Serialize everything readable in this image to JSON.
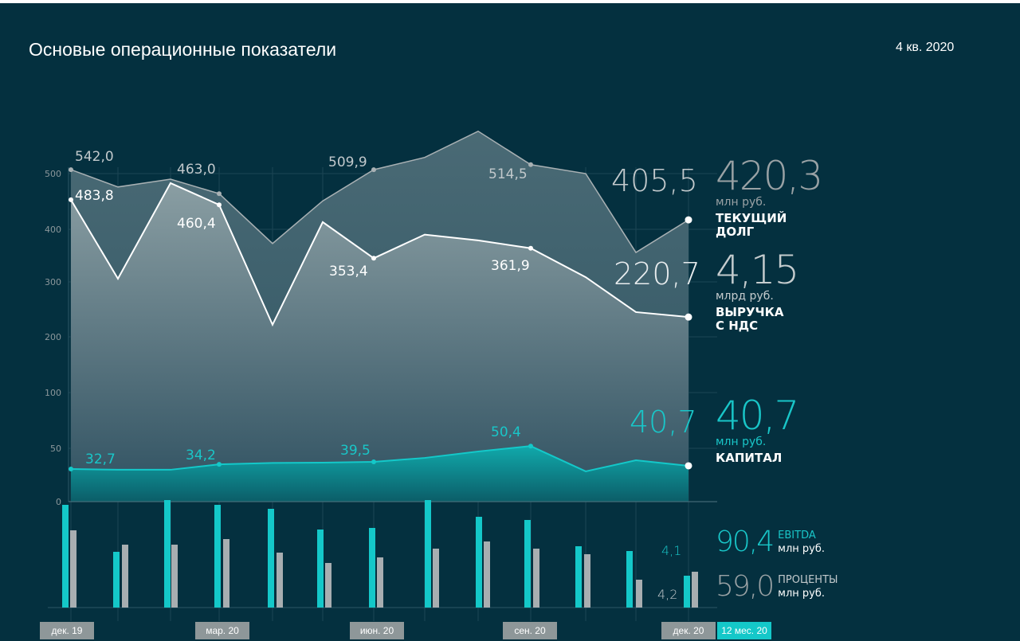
{
  "header": {
    "title": "Основые операционные показатели",
    "period": "4 кв. 2020"
  },
  "colors": {
    "background": "#04303f",
    "debt": "#a9b1b4",
    "revenue": "#ffffff",
    "capital": "#14c8c9",
    "ebitda": "#14c8c9",
    "interest": "#a8aeb1"
  },
  "chart_data": {
    "type": "area",
    "yaxis": {
      "ticks": [
        0,
        50,
        100,
        200,
        300,
        400,
        500
      ],
      "tick_labels": [
        "0",
        "50",
        "100",
        "200",
        "300",
        "400",
        "500"
      ],
      "scale": "piecewise"
    },
    "x": [
      "дек. 19",
      "",
      "",
      "мар. 20",
      "",
      "",
      "июн. 20",
      "",
      "",
      "сен. 20",
      "",
      "",
      "дек. 20"
    ],
    "grid": true,
    "series": [
      {
        "key": "debt",
        "values": [
          507,
          476,
          490,
          464,
          373,
          451,
          507,
          529,
          576,
          516,
          500,
          356,
          417
        ]
      },
      {
        "key": "revenue",
        "values": [
          453,
          306,
          483,
          444,
          222,
          413,
          345,
          390,
          379,
          364,
          309,
          245,
          236
        ]
      },
      {
        "key": "capital",
        "values": [
          30.6,
          29.9,
          29.9,
          35,
          36.3,
          36.6,
          37.3,
          41,
          47,
          52,
          28.4,
          38.8,
          33.6
        ]
      }
    ],
    "point_labels": {
      "debt": [
        "542,0",
        "463,0",
        "509,9",
        "514,5",
        "405,5"
      ],
      "revenue": [
        "483,8",
        "460,4",
        "353,4",
        "361,9",
        "220,7"
      ],
      "capital": [
        "32,7",
        "34,2",
        "39,5",
        "50,4",
        "40,7"
      ]
    },
    "bars": {
      "type": "bar",
      "ebitda": [
        129,
        70,
        135,
        129,
        124,
        98,
        100,
        135,
        114,
        110,
        77,
        71,
        40
      ],
      "interest": [
        97,
        79,
        79,
        86,
        69,
        56,
        63,
        74,
        83,
        74,
        67,
        35,
        45
      ],
      "end_labels": {
        "ebitda": "4,1",
        "interest": "4,2"
      }
    },
    "month_labels": [
      "дек. 19",
      "мар. 20",
      "июн. 20",
      "сен. 20",
      "дек. 20",
      "12 мес. 20"
    ]
  },
  "kpis": {
    "debt": {
      "value": "420,3",
      "unit": "млн руб.",
      "name1": "ТЕКУЩИЙ",
      "name2": "ДОЛГ"
    },
    "revenue": {
      "value": "4,15",
      "unit": "млрд руб.",
      "name1": "ВЫРУЧКА",
      "name2": "С НДС"
    },
    "capital": {
      "value": "40,7",
      "unit": "млн руб.",
      "name1": "КАПИТАЛ"
    }
  },
  "legend": {
    "ebitda": {
      "value": "90,4",
      "name": "EBITDA",
      "unit": "млн руб."
    },
    "interest": {
      "value": "59,0",
      "name": "ПРОЦЕНТЫ",
      "unit": "млн руб."
    }
  }
}
